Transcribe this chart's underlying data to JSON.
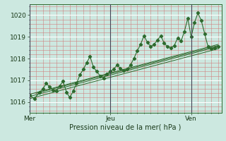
{
  "bg_color": "#cce8e0",
  "line_color": "#2d6a2d",
  "vline_color": "#666680",
  "ylim": [
    1015.5,
    1020.5
  ],
  "yticks": [
    1016,
    1017,
    1018,
    1019,
    1020
  ],
  "xlim": [
    0,
    114
  ],
  "day_labels": [
    "Mer",
    "Jeu",
    "Ven"
  ],
  "day_positions": [
    0,
    48,
    96
  ],
  "xlabel": "Pression niveau de la mer( hPa )",
  "series": [
    [
      0,
      1016.3
    ],
    [
      3,
      1016.15
    ],
    [
      6,
      1016.45
    ],
    [
      8,
      1016.6
    ],
    [
      10,
      1016.85
    ],
    [
      12,
      1016.7
    ],
    [
      14,
      1016.55
    ],
    [
      16,
      1016.5
    ],
    [
      18,
      1016.75
    ],
    [
      20,
      1016.95
    ],
    [
      22,
      1016.45
    ],
    [
      24,
      1016.2
    ],
    [
      26,
      1016.5
    ],
    [
      28,
      1016.85
    ],
    [
      30,
      1017.25
    ],
    [
      32,
      1017.5
    ],
    [
      34,
      1017.8
    ],
    [
      36,
      1018.1
    ],
    [
      38,
      1017.6
    ],
    [
      40,
      1017.4
    ],
    [
      42,
      1017.2
    ],
    [
      44,
      1017.1
    ],
    [
      46,
      1017.3
    ],
    [
      48,
      1017.4
    ],
    [
      50,
      1017.5
    ],
    [
      52,
      1017.7
    ],
    [
      54,
      1017.55
    ],
    [
      56,
      1017.45
    ],
    [
      58,
      1017.5
    ],
    [
      60,
      1017.7
    ],
    [
      62,
      1018.0
    ],
    [
      64,
      1018.35
    ],
    [
      66,
      1018.65
    ],
    [
      68,
      1019.05
    ],
    [
      70,
      1018.75
    ],
    [
      72,
      1018.55
    ],
    [
      74,
      1018.65
    ],
    [
      76,
      1018.85
    ],
    [
      78,
      1019.05
    ],
    [
      80,
      1018.7
    ],
    [
      82,
      1018.55
    ],
    [
      84,
      1018.5
    ],
    [
      86,
      1018.6
    ],
    [
      88,
      1018.95
    ],
    [
      90,
      1018.8
    ],
    [
      92,
      1019.25
    ],
    [
      94,
      1019.85
    ],
    [
      96,
      1019.0
    ],
    [
      98,
      1019.65
    ],
    [
      100,
      1020.1
    ],
    [
      102,
      1019.75
    ],
    [
      104,
      1019.15
    ],
    [
      106,
      1018.55
    ],
    [
      108,
      1018.45
    ],
    [
      110,
      1018.5
    ],
    [
      112,
      1018.55
    ]
  ],
  "trend_lines": [
    {
      "x0": 0,
      "y0": 1016.25,
      "x1": 112,
      "y1": 1018.55
    },
    {
      "x0": 0,
      "y0": 1016.15,
      "x1": 112,
      "y1": 1018.45
    },
    {
      "x0": 0,
      "y0": 1016.35,
      "x1": 112,
      "y1": 1018.65
    },
    {
      "x0": 4,
      "y0": 1016.4,
      "x1": 112,
      "y1": 1018.6
    }
  ]
}
